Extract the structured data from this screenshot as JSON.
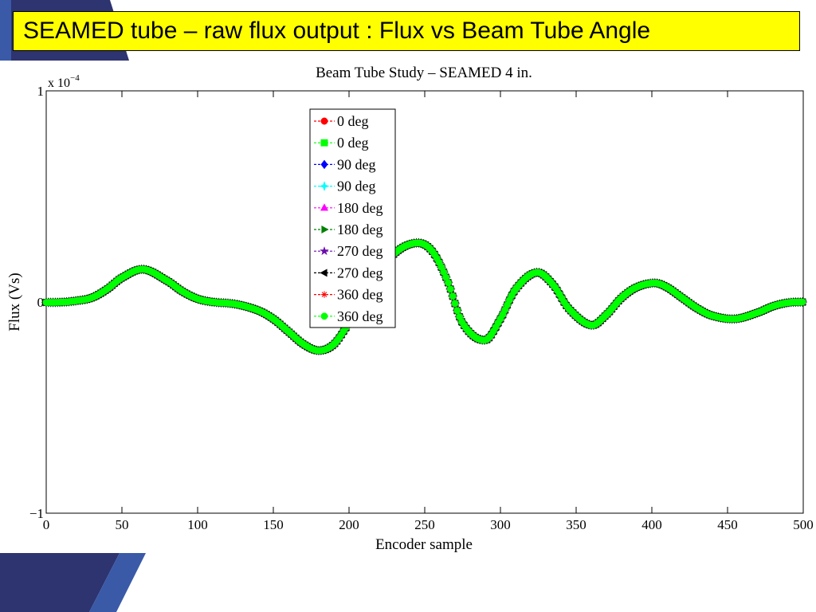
{
  "slide": {
    "title": "SEAMED tube – raw flux output : Flux vs Beam Tube Angle",
    "title_bg": "#ffff00",
    "corner_color": "#2d3470"
  },
  "chart_data": {
    "type": "line",
    "title": "Beam Tube Study – SEAMED 4 in.",
    "xlabel": "Encoder sample",
    "ylabel": "Flux (Vs)",
    "y_multiplier": "x 10",
    "y_multiplier_exponent": "−4",
    "xlim": [
      0,
      500
    ],
    "ylim": [
      -1,
      1
    ],
    "x_ticks": [
      0,
      50,
      100,
      150,
      200,
      250,
      300,
      350,
      400,
      450,
      500
    ],
    "y_ticks": [
      -1,
      0,
      1
    ],
    "y_tick_labels": [
      "−1",
      "0",
      "1"
    ],
    "grid": false,
    "legend_position": "top-center",
    "curve": {
      "x": [
        0,
        10,
        20,
        30,
        40,
        50,
        64,
        80,
        90,
        100,
        110,
        125,
        140,
        150,
        160,
        170,
        180,
        190,
        200,
        210,
        220,
        230,
        245,
        255,
        265,
        275,
        290,
        300,
        310,
        324,
        335,
        345,
        360,
        370,
        380,
        390,
        402,
        410,
        420,
        430,
        440,
        455,
        470,
        480,
        490,
        500
      ],
      "y": [
        -0.002,
        -0.001,
        0.006,
        0.02,
        0.06,
        0.115,
        0.155,
        0.1,
        0.05,
        0.015,
        0.0,
        -0.01,
        -0.04,
        -0.08,
        -0.14,
        -0.2,
        -0.23,
        -0.2,
        -0.1,
        0.0,
        0.12,
        0.23,
        0.28,
        0.24,
        0.1,
        -0.1,
        -0.18,
        -0.08,
        0.06,
        0.14,
        0.08,
        -0.03,
        -0.11,
        -0.06,
        0.02,
        0.07,
        0.09,
        0.07,
        0.02,
        -0.03,
        -0.065,
        -0.08,
        -0.05,
        -0.02,
        -0.003,
        0.0
      ]
    },
    "series": [
      {
        "name": "0 deg",
        "color": "#ff0000",
        "marker": "circle"
      },
      {
        "name": "0 deg",
        "color": "#00ff00",
        "marker": "square"
      },
      {
        "name": "90 deg",
        "color": "#0000ff",
        "marker": "diamond"
      },
      {
        "name": "90 deg",
        "color": "#00ffff",
        "marker": "star4"
      },
      {
        "name": "180 deg",
        "color": "#ff00ff",
        "marker": "triangle-up"
      },
      {
        "name": "180 deg",
        "color": "#008000",
        "marker": "triangle-right"
      },
      {
        "name": "270 deg",
        "color": "#6a0dad",
        "marker": "pentagram"
      },
      {
        "name": "270 deg",
        "color": "#000000",
        "marker": "triangle-left"
      },
      {
        "name": "360 deg",
        "color": "#ff0000",
        "marker": "asterisk"
      },
      {
        "name": "360 deg",
        "color": "#00ff00",
        "marker": "circle"
      }
    ]
  }
}
